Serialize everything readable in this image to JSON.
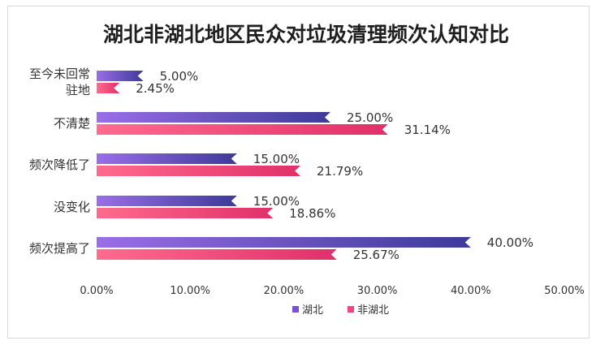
{
  "chart_data": {
    "type": "bar",
    "orientation": "horizontal",
    "title": "湖北非湖北地区民众对垃圾清理频次认知对比",
    "categories": [
      "至今未回常驻地",
      "不清楚",
      "频次降低了",
      "没变化",
      "频次提高了"
    ],
    "category_lines": [
      [
        "至今未回常",
        "驻地"
      ],
      [
        "不清楚"
      ],
      [
        "频次降低了"
      ],
      [
        "没变化"
      ],
      [
        "频次提高了"
      ]
    ],
    "series": [
      {
        "name": "湖北",
        "values": [
          5.0,
          25.0,
          15.0,
          15.0,
          40.0
        ],
        "labels": [
          "5.00%",
          "25.00%",
          "15.00%",
          "15.00%",
          "40.00%"
        ],
        "color": "#7b4fd6"
      },
      {
        "name": "非湖北",
        "values": [
          2.45,
          31.14,
          21.79,
          18.86,
          25.67
        ],
        "labels": [
          "2.45%",
          "31.14%",
          "21.79%",
          "18.86%",
          "25.67%"
        ],
        "color": "#f0457a"
      }
    ],
    "xlim": [
      0,
      50
    ],
    "xticks": [
      "0.00%",
      "10.00%",
      "20.00%",
      "30.00%",
      "40.00%",
      "50.00%"
    ],
    "grid": false,
    "legend_position": "bottom"
  },
  "colors": {
    "hubei_start": "#9a6ee8",
    "hubei_end": "#3d3a99",
    "nonhubei_start": "#ff6b8e",
    "nonhubei_end": "#e0306a"
  }
}
